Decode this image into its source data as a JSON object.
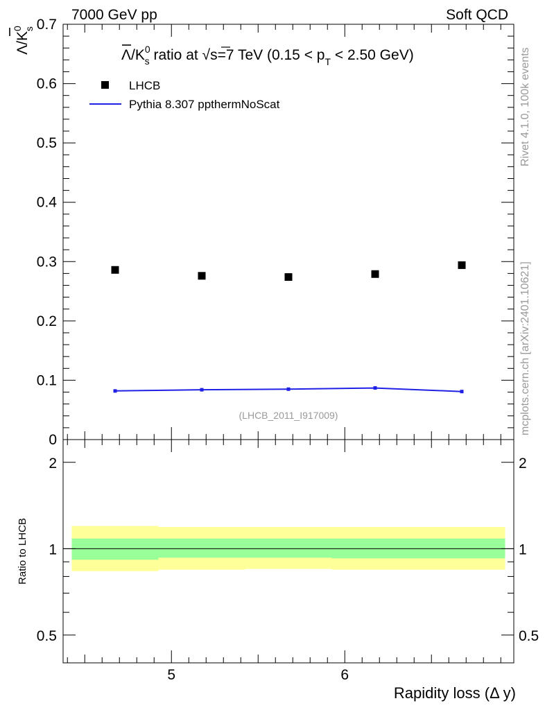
{
  "header": {
    "left": "7000 GeV pp",
    "right": "Soft QCD"
  },
  "side_labels": {
    "rivet": "Rivet 4.1.0,  100k events",
    "mcplots": "mcplots.cern.ch [arXiv:2401.10621]"
  },
  "title": {
    "lambda_bar": "Λ",
    "slash_k": "/K",
    "sup_zero": "0",
    "sub_s": "s",
    "mid": " ratio at ",
    "sqrt_sign": "√",
    "s_eq": "s=7 TeV (0.15 < p",
    "sub_T": "T",
    "tail": " < 2.50 GeV)"
  },
  "ylabel": {
    "lambda_bar": "Λ",
    "slash_k": "/K",
    "sup_zero": "0",
    "sub_s": "s"
  },
  "legend": [
    {
      "label": "LHCB",
      "kind": "marker",
      "color": "#000000"
    },
    {
      "label": "Pythia 8.307 ppthermNoScat",
      "kind": "line",
      "color": "#0000ff"
    }
  ],
  "analysis_id": "(LHCB_2011_I917009)",
  "ratio_ylabel": "Ratio to LHCB",
  "xlabel": "Rapidity loss (Δ y)",
  "colors": {
    "data": "#000000",
    "mc": "#1f1fe6",
    "band_inner": "#99ff99",
    "band_outer": "#ffff99",
    "watermark": "#999999"
  },
  "chart_data": [
    {
      "type": "scatter",
      "title": "Λ̄/K⁰s ratio at √s=7 TeV (0.15 < pT < 2.50 GeV)",
      "xlabel": "Rapidity loss (Δ y)",
      "ylabel": "Λ̄/K⁰s",
      "xlim": [
        4.375,
        6.975
      ],
      "ylim": [
        0,
        0.7
      ],
      "yticks": [
        0,
        0.1,
        0.2,
        0.3,
        0.4,
        0.5,
        0.6,
        0.7
      ],
      "ytick_labels": [
        "0",
        "0.1",
        "0.2",
        "0.3",
        "0.4",
        "0.5",
        "0.6",
        "0.7"
      ],
      "x_bin_edges": [
        4.425,
        4.925,
        5.425,
        5.925,
        6.425,
        6.925
      ],
      "series": [
        {
          "name": "LHCB",
          "style": "marker",
          "x": [
            4.675,
            5.175,
            5.675,
            6.175,
            6.675
          ],
          "values": [
            0.286,
            0.276,
            0.274,
            0.279,
            0.294
          ]
        },
        {
          "name": "Pythia 8.307 ppthermNoScat",
          "style": "line",
          "x": [
            4.675,
            5.175,
            5.675,
            6.175,
            6.675
          ],
          "values": [
            0.082,
            0.084,
            0.085,
            0.087,
            0.081
          ]
        }
      ]
    },
    {
      "type": "area",
      "ylabel": "Ratio to LHCB",
      "xlabel": "Rapidity loss (Δ y)",
      "xlim": [
        4.375,
        6.975
      ],
      "ylim": [
        0.4,
        2.4
      ],
      "yscale": "log",
      "yticks": [
        0.5,
        1,
        2
      ],
      "ytick_labels": [
        "0.5",
        "1",
        "2"
      ],
      "xticks": [
        5,
        6
      ],
      "xtick_labels": [
        "5",
        "6"
      ],
      "x_bin_edges": [
        4.425,
        4.925,
        5.425,
        5.925,
        6.425,
        6.925
      ],
      "band_inner": {
        "low": [
          0.915,
          0.93,
          0.93,
          0.925,
          0.925
        ],
        "high": [
          1.085,
          1.085,
          1.085,
          1.085,
          1.085
        ]
      },
      "band_outer": {
        "low": [
          0.835,
          0.845,
          0.85,
          0.845,
          0.845
        ],
        "high": [
          1.2,
          1.19,
          1.19,
          1.19,
          1.19
        ]
      },
      "reference": 1
    }
  ]
}
